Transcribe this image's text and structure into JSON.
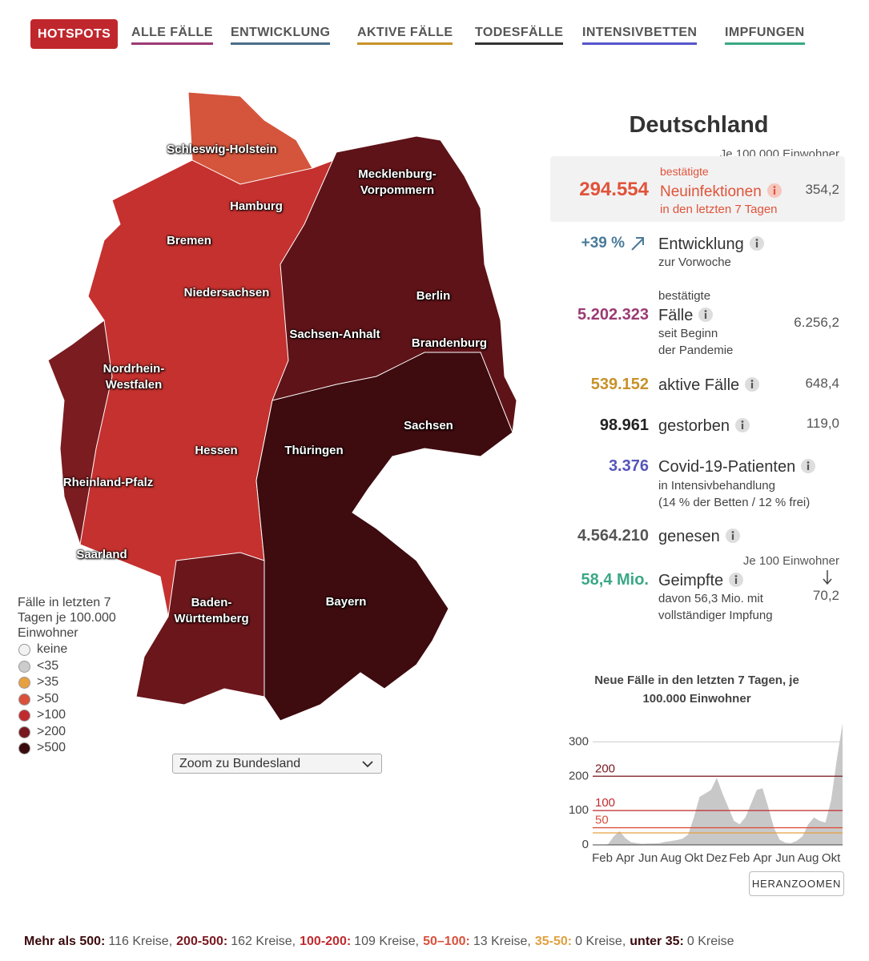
{
  "tabs": [
    {
      "label": "HOTSPOTS",
      "color": "#c0272d"
    },
    {
      "label": "ALLE FÄLLE",
      "color": "#9b3a74"
    },
    {
      "label": "ENTWICKLUNG",
      "color": "#4a6f8a"
    },
    {
      "label": "AKTIVE FÄLLE",
      "color": "#c8922a"
    },
    {
      "label": "TODESFÄLLE",
      "color": "#333333"
    },
    {
      "label": "INTENSIVBETTEN",
      "color": "#5555cc"
    },
    {
      "label": "IMPFUNGEN",
      "color": "#3aa885"
    }
  ],
  "map": {
    "states": [
      "Schleswig-Holstein",
      "Mecklenburg-Vorpommern",
      "Hamburg",
      "Bremen",
      "Niedersachsen",
      "Berlin",
      "Sachsen-Anhalt",
      "Brandenburg",
      "Nordrhein-Westfalen",
      "Sachsen",
      "Hessen",
      "Thüringen",
      "Rheinland-Pfalz",
      "Saarland",
      "Baden-Württemberg",
      "Bayern"
    ],
    "legend": {
      "title": "Fälle in letzten 7 Tagen je 100.000 Einwohner",
      "items": [
        {
          "label": "keine",
          "color": "#f2f2f2"
        },
        {
          "label": "<35",
          "color": "#cccccc"
        },
        {
          "label": ">35",
          "color": "#e8a040"
        },
        {
          "label": ">50",
          "color": "#d9513c"
        },
        {
          "label": ">100",
          "color": "#c02a2e"
        },
        {
          "label": ">200",
          "color": "#7a1820"
        },
        {
          "label": ">500",
          "color": "#3a0a0d"
        }
      ]
    },
    "zoom": "Zoom zu Bundesland"
  },
  "panel": {
    "title": "Deutschland",
    "note": "Je 100.000 Einwohner",
    "highlight": {
      "value": "294.554",
      "pre": "bestätigte",
      "label": "Neuinfektionen",
      "sub": "in den letzten 7 Tagen",
      "per": "354,2"
    },
    "development": {
      "value": "+39 %",
      "label": "Entwicklung",
      "sub": "zur Vorwoche"
    },
    "cases": {
      "value": "5.202.323",
      "pre": "bestätigte",
      "label": "Fälle",
      "sub": [
        "seit Beginn",
        "der Pandemie"
      ],
      "per": "6.256,2"
    },
    "active": {
      "value": "539.152",
      "label": "aktive Fälle",
      "per": "648,4"
    },
    "deaths": {
      "value": "98.961",
      "label": "gestorben",
      "per": "119,0"
    },
    "icu": {
      "value": "3.376",
      "label": "Covid-19-Patienten",
      "sub": [
        "in Intensivbehandlung",
        "(14 % der Betten / 12 % frei)"
      ]
    },
    "recovered": {
      "value": "4.564.210",
      "label": "genesen"
    },
    "vaccinated": {
      "note": "Je 100 Einwohner",
      "value": "58,4 Mio.",
      "label": "Geimpfte",
      "sub": [
        "davon 56,3 Mio. mit",
        "vollständiger Impfung"
      ],
      "per": "70,2"
    }
  },
  "chart_data": {
    "type": "area",
    "title": "Neue Fälle in den letzten 7 Tagen, je 100.000 Einwohner",
    "categories": [
      "Feb",
      null,
      null,
      null,
      "Apr",
      null,
      null,
      null,
      "Jun",
      null,
      null,
      null,
      "Aug",
      null,
      null,
      null,
      "Okt",
      null,
      null,
      null,
      "Dez",
      null,
      null,
      null,
      "Feb",
      null,
      null,
      null,
      "Apr",
      null,
      null,
      null,
      "Jun",
      null,
      null,
      null,
      "Aug",
      null,
      null,
      null,
      "Okt",
      null,
      null,
      null
    ],
    "values": [
      0,
      0,
      2,
      25,
      40,
      20,
      8,
      5,
      3,
      4,
      4,
      5,
      9,
      11,
      14,
      18,
      30,
      80,
      140,
      150,
      160,
      195,
      150,
      110,
      70,
      60,
      80,
      120,
      160,
      165,
      110,
      50,
      15,
      6,
      5,
      12,
      25,
      60,
      80,
      70,
      65,
      130,
      250,
      354
    ],
    "color": "#c8c8c8",
    "ylim": [
      0,
      350
    ],
    "yticks": [
      0,
      100,
      200,
      300
    ],
    "grid": true,
    "reference_lines": [
      {
        "value": 200,
        "label": "200",
        "color": "#7a1820"
      },
      {
        "value": 100,
        "label": "100",
        "color": "#c02a2e"
      },
      {
        "value": 50,
        "label": "50",
        "color": "#d9513c"
      },
      {
        "value": 35,
        "color": "#e8a040"
      }
    ]
  },
  "zoom_button": "HERANZOOMEN",
  "footer": [
    {
      "label": "Mehr als 500:",
      "text": "116 Kreise,",
      "color": "#3a0a0d"
    },
    {
      "label": "200-500:",
      "text": "162 Kreise,",
      "color": "#7a1820"
    },
    {
      "label": "100-200:",
      "text": "109 Kreise,",
      "color": "#c02a2e"
    },
    {
      "label": "50–100:",
      "text": "13 Kreise,",
      "color": "#d9513c"
    },
    {
      "label": "35-50:",
      "text": "0 Kreise,",
      "color": "#e0a040"
    },
    {
      "label": "unter 35:",
      "text": "0 Kreise",
      "color": "#3a0a0d"
    }
  ]
}
